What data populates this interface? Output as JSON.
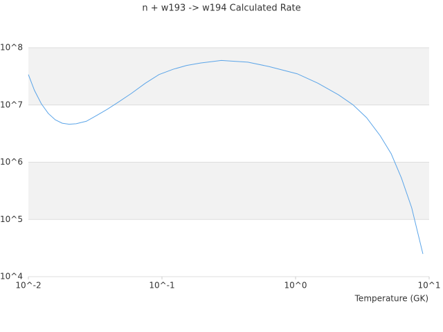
{
  "chart_data": {
    "type": "line",
    "title": "n + w193 -> w194 Calculated Rate",
    "x_label": "Temperature (GK)",
    "x_scale": "log",
    "y_scale": "log",
    "grid": true,
    "bands": true,
    "xlim": [
      0.01,
      10
    ],
    "ylim": [
      10000,
      100000000
    ],
    "xticks": [
      {
        "value": 0.01,
        "label": "10^-2"
      },
      {
        "value": 0.1,
        "label": "10^-1"
      },
      {
        "value": 1,
        "label": "10^0"
      },
      {
        "value": 10,
        "label": "10^1"
      }
    ],
    "yticks": [
      {
        "value": 10000,
        "label": "10^4"
      },
      {
        "value": 100000,
        "label": "10^5"
      },
      {
        "value": 1000000,
        "label": "10^6"
      },
      {
        "value": 10000000,
        "label": "10^7"
      },
      {
        "value": 100000000,
        "label": "10^8"
      }
    ],
    "series": [
      {
        "color": "#5aa4e8",
        "x": [
          0.01,
          0.0111,
          0.0125,
          0.0141,
          0.0159,
          0.0179,
          0.0202,
          0.0228,
          0.0272,
          0.0326,
          0.0389,
          0.0466,
          0.0592,
          0.0751,
          0.095,
          0.121,
          0.153,
          0.194,
          0.278,
          0.44,
          0.63,
          1.03,
          1.47,
          2.1,
          2.7,
          3.4,
          4.3,
          5.2,
          6.2,
          7.4,
          8.98
        ],
        "values": [
          34000000,
          18000000,
          10500000,
          7100000,
          5500000,
          4800000,
          4600000,
          4700000,
          5200000,
          6600000,
          8400000,
          11000000,
          16000000,
          24000000,
          34000000,
          42000000,
          49000000,
          54000000,
          60000000,
          56000000,
          47000000,
          35000000,
          24000000,
          15000000,
          10000000,
          6000000,
          2900000,
          1400000,
          530000,
          160000,
          25000
        ]
      }
    ]
  }
}
